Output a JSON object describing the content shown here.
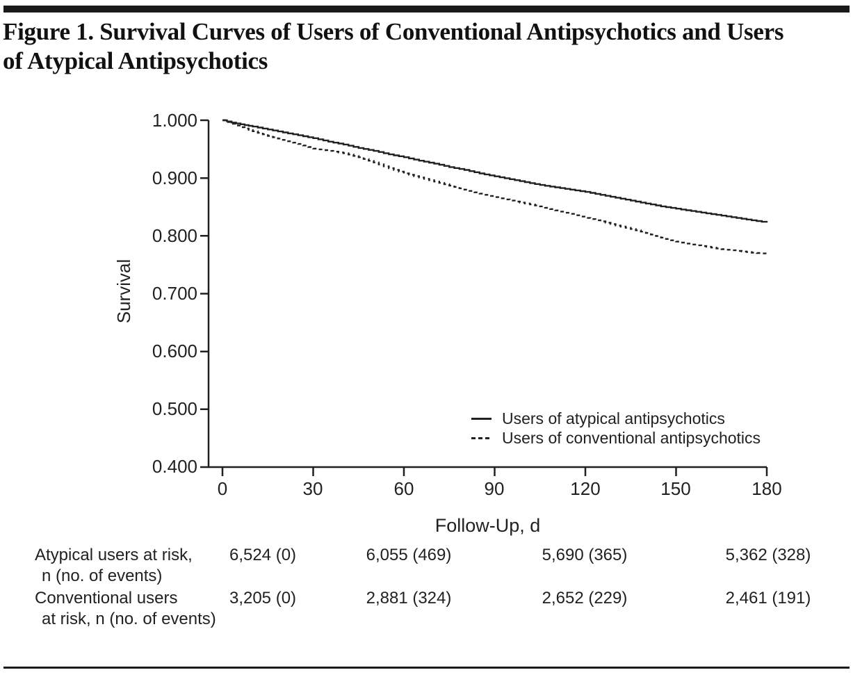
{
  "figure_title": {
    "line1": "Figure 1. Survival Curves of Users of Conventional Antipsychotics and Users",
    "line2": "of Atypical Antipsychotics",
    "full": "Figure 1. Survival Curves of Users of Conventional Antipsychotics and Users of Atypical Antipsychotics"
  },
  "colors": {
    "ink": "#231f20",
    "rule": "#1a1a1a",
    "background": "#ffffff"
  },
  "chart_data": {
    "type": "line",
    "subtype": "kaplan-meier-survival",
    "xlabel": "Follow-Up, d",
    "ylabel": "Survival",
    "xlim": [
      0,
      180
    ],
    "ylim": [
      0.4,
      1.0
    ],
    "grid": "off",
    "legend_position": "inside-lower-right",
    "x_ticks": [
      "0",
      "30",
      "60",
      "90",
      "120",
      "150",
      "180"
    ],
    "y_ticks": [
      "1.000",
      "0.900",
      "0.800",
      "0.700",
      "0.600",
      "0.500",
      "0.400"
    ],
    "legend": [
      {
        "label": "Users of atypical antipsychotics",
        "line": "solid"
      },
      {
        "label": "Users of conventional antipsychotics",
        "line": "dashed"
      }
    ],
    "series": [
      {
        "name": "Users of atypical antipsychotics",
        "line": "solid",
        "x": [
          0,
          3,
          6,
          10,
          15,
          20,
          25,
          30,
          35,
          40,
          45,
          50,
          55,
          60,
          65,
          70,
          75,
          80,
          85,
          90,
          95,
          100,
          105,
          110,
          115,
          120,
          125,
          130,
          135,
          140,
          145,
          150,
          155,
          160,
          165,
          170,
          175,
          180
        ],
        "y": [
          1.0,
          0.996,
          0.993,
          0.989,
          0.984,
          0.979,
          0.974,
          0.969,
          0.963,
          0.958,
          0.952,
          0.947,
          0.941,
          0.936,
          0.93,
          0.925,
          0.919,
          0.914,
          0.908,
          0.903,
          0.898,
          0.893,
          0.888,
          0.884,
          0.88,
          0.876,
          0.871,
          0.866,
          0.861,
          0.856,
          0.851,
          0.847,
          0.843,
          0.839,
          0.835,
          0.831,
          0.827,
          0.823
        ]
      },
      {
        "name": "Users of conventional antipsychotics",
        "line": "dashed",
        "x": [
          0,
          3,
          6,
          10,
          15,
          20,
          25,
          30,
          35,
          40,
          45,
          50,
          55,
          60,
          65,
          70,
          75,
          80,
          85,
          90,
          95,
          100,
          105,
          110,
          115,
          120,
          125,
          130,
          135,
          140,
          145,
          150,
          155,
          160,
          165,
          170,
          175,
          180
        ],
        "y": [
          1.0,
          0.994,
          0.988,
          0.981,
          0.973,
          0.966,
          0.959,
          0.951,
          0.947,
          0.943,
          0.936,
          0.927,
          0.917,
          0.908,
          0.901,
          0.894,
          0.887,
          0.88,
          0.873,
          0.867,
          0.861,
          0.856,
          0.851,
          0.844,
          0.838,
          0.831,
          0.825,
          0.818,
          0.812,
          0.805,
          0.797,
          0.79,
          0.785,
          0.781,
          0.777,
          0.774,
          0.771,
          0.769
        ]
      }
    ]
  },
  "risk_table": {
    "rows": [
      {
        "label_line1": "Atypical users at risk,",
        "label_line2": "n (no. of events)",
        "values": [
          "6,524 (0)",
          "6,055 (469)",
          "5,690 (365)",
          "5,362 (328)"
        ]
      },
      {
        "label_line1": "Conventional users",
        "label_line2": "at risk, n (no. of events)",
        "values": [
          "3,205 (0)",
          "2,881 (324)",
          "2,652 (229)",
          "2,461 (191)"
        ]
      }
    ]
  }
}
